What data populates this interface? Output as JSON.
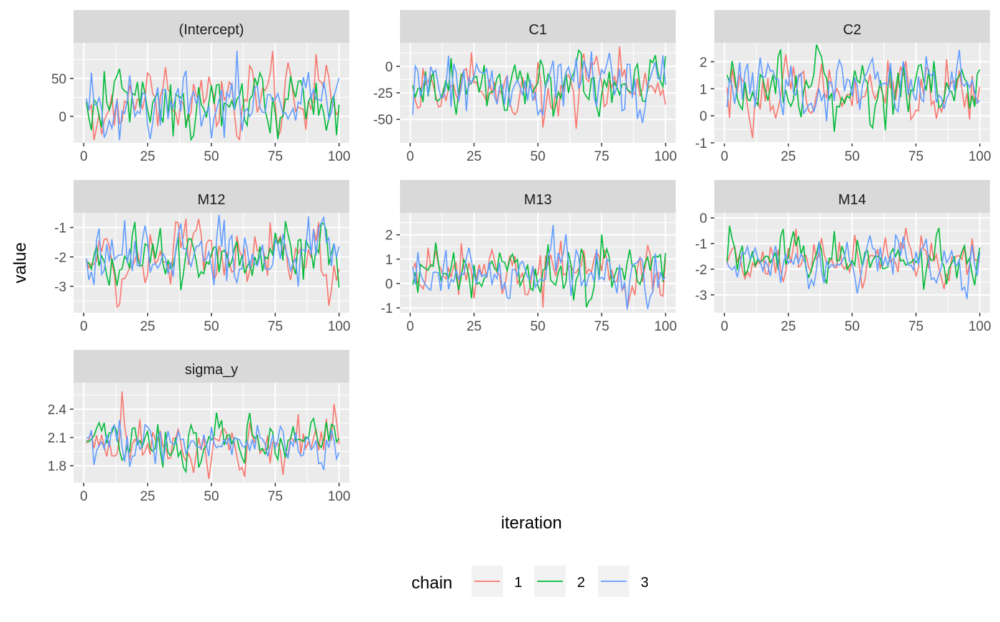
{
  "chart_data": {
    "type": "line",
    "xlabel": "iteration",
    "ylabel": "value",
    "xlim": [
      0,
      100
    ],
    "x_ticks": [
      0,
      25,
      50,
      75,
      100
    ],
    "grid": true,
    "legend": {
      "title": "chain",
      "position": "bottom",
      "entries": [
        {
          "label": "1",
          "color": "#F8766D"
        },
        {
          "label": "2",
          "color": "#00BA38"
        },
        {
          "label": "3",
          "color": "#619CFF"
        }
      ]
    },
    "panels": [
      {
        "title": "(Intercept)",
        "ylim": [
          -35,
          97
        ],
        "yticks": [
          0,
          50,
          100
        ],
        "center": 20,
        "spread": 22,
        "low": -32,
        "high": 95
      },
      {
        "title": "C1",
        "ylim": [
          -72,
          22
        ],
        "yticks": [
          -50,
          -25,
          0,
          25
        ],
        "center": -17,
        "spread": 13,
        "low": -68,
        "high": 22
      },
      {
        "title": "C2",
        "ylim": [
          -1.0,
          2.7
        ],
        "yticks": [
          -1,
          0,
          1,
          2
        ],
        "center": 1.0,
        "spread": 0.55,
        "low": -0.85,
        "high": 2.65
      },
      {
        "title": "M12",
        "ylim": [
          -3.9,
          -0.5
        ],
        "yticks": [
          -4,
          -3,
          -2,
          -1
        ],
        "center": -2.0,
        "spread": 0.5,
        "low": -3.85,
        "high": -0.55
      },
      {
        "title": "M13",
        "ylim": [
          -1.2,
          2.9
        ],
        "yticks": [
          -1,
          0,
          1,
          2,
          3
        ],
        "center": 0.5,
        "spread": 0.55,
        "low": -1.15,
        "high": 2.85
      },
      {
        "title": "M14",
        "ylim": [
          -3.7,
          0.2
        ],
        "yticks": [
          -3,
          -2,
          -1,
          0
        ],
        "center": -1.6,
        "spread": 0.5,
        "low": -3.65,
        "high": 0.15
      },
      {
        "title": "sigma_y",
        "ylim": [
          1.62,
          2.68
        ],
        "yticks": [
          1.8,
          2.1,
          2.4,
          2.7
        ],
        "center": 2.03,
        "spread": 0.13,
        "low": 1.64,
        "high": 2.66
      }
    ],
    "series": [
      {
        "name": "1"
      },
      {
        "name": "2"
      },
      {
        "name": "3"
      }
    ],
    "n_iterations": 100
  }
}
